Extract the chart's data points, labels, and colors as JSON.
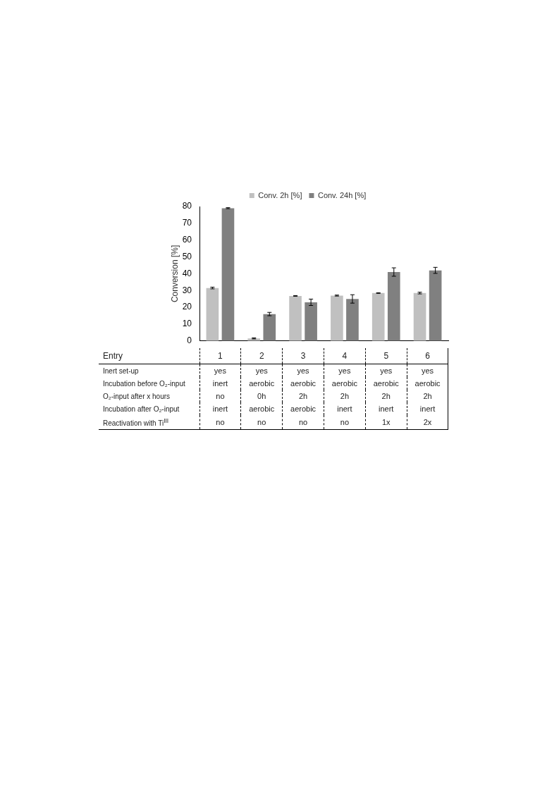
{
  "chart_data": {
    "type": "bar",
    "categories": [
      "1",
      "2",
      "3",
      "4",
      "5",
      "6"
    ],
    "ylabel": "Conversion [%]",
    "ylim": [
      0,
      80
    ],
    "yticks": [
      0,
      10,
      20,
      30,
      40,
      50,
      60,
      70,
      80
    ],
    "legend": "top",
    "series": [
      {
        "name": "Conv. 2h [%]",
        "color": "#c0c0c0",
        "values": [
          31.5,
          1.5,
          26.8,
          27,
          28.5,
          28.5
        ],
        "errors": [
          0.5,
          0.3,
          0.2,
          0.3,
          0.2,
          0.5
        ]
      },
      {
        "name": "Conv. 24h [%]",
        "color": "#808080",
        "values": [
          79,
          16,
          23,
          25,
          41,
          42
        ],
        "errors": [
          0.3,
          1,
          1.9,
          2.5,
          2.5,
          1.8
        ]
      }
    ],
    "annotations": [
      "Entry",
      "Inert set-up",
      "yes",
      "yes",
      "yes",
      "yes",
      "yes",
      "yes",
      "Incubation before O₂-input",
      "inert",
      "aerobic",
      "aerobic",
      "aerobic",
      "aerobic",
      "aerobic",
      "O₂-input after x hours",
      "no",
      "0h",
      "2h",
      "2h",
      "2h",
      "2h",
      "Incubation after O₂-input",
      "inert",
      "aerobic",
      "aerobic",
      "inert",
      "inert",
      "inert",
      "Reactivation with Ti$^{III}$",
      "no",
      "no",
      "no",
      "no",
      "1x",
      "2x"
    ]
  }
}
